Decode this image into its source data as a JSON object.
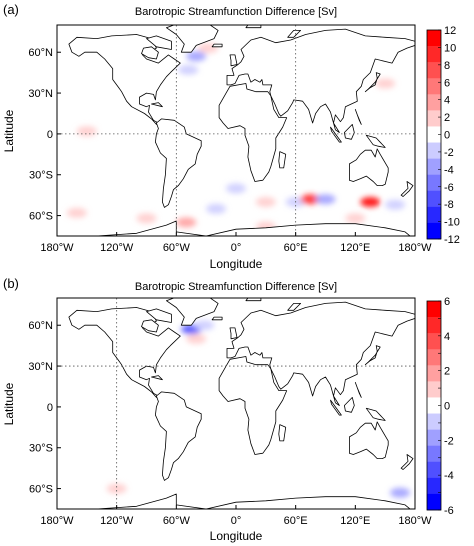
{
  "chart_data": [
    {
      "type": "heatmap",
      "panel_label": "(a)",
      "title": "Barotropic Streamfunction Difference [Sv]",
      "xlabel": "Longitude",
      "ylabel": "Latitude",
      "xlim": [
        -180,
        180
      ],
      "ylim": [
        -75,
        80
      ],
      "x_ticks": [
        {
          "value": -180,
          "label": "180°W"
        },
        {
          "value": -120,
          "label": "120°W"
        },
        {
          "value": -60,
          "label": "60°W"
        },
        {
          "value": 0,
          "label": "0°"
        },
        {
          "value": 60,
          "label": "60°E"
        },
        {
          "value": 120,
          "label": "120°E"
        },
        {
          "value": 180,
          "label": "180°W"
        }
      ],
      "y_ticks": [
        {
          "value": 60,
          "label": "60°N"
        },
        {
          "value": 30,
          "label": "30°N"
        },
        {
          "value": 0,
          "label": "0"
        },
        {
          "value": -30,
          "label": "30°S"
        },
        {
          "value": -60,
          "label": "60°S"
        }
      ],
      "colorbar": {
        "levels": [
          -12,
          -10,
          -8,
          -6,
          -4,
          -2,
          2,
          4,
          6,
          8,
          10,
          12
        ],
        "labels": [
          "12",
          "10",
          "8",
          "6",
          "4",
          "2",
          "0",
          "-2",
          "-4",
          "-6",
          "-8",
          "-10",
          "-12"
        ],
        "colors": [
          "#ff0000",
          "#ff2828",
          "#ff5050",
          "#ff7878",
          "#ffa0a0",
          "#ffcccc",
          "#ffffff",
          "#ccccff",
          "#a0a0ff",
          "#7878ff",
          "#5050ff",
          "#2828ff",
          "#0000ff"
        ]
      },
      "dotted_lines": {
        "lats": [
          0
        ],
        "lons": [
          -60,
          60
        ]
      },
      "anomalies": [
        {
          "lon": -40,
          "lat": 57,
          "value": -6
        },
        {
          "lon": -48,
          "lat": 47,
          "value": -3
        },
        {
          "lon": -28,
          "lat": 63,
          "value": 3
        },
        {
          "lon": -50,
          "lat": 38,
          "value": -2
        },
        {
          "lon": 150,
          "lat": 37,
          "value": 2
        },
        {
          "lon": -150,
          "lat": 2,
          "value": 2
        },
        {
          "lon": 150,
          "lat": 2,
          "value": -2
        },
        {
          "lon": 0,
          "lat": -40,
          "value": -3
        },
        {
          "lon": 30,
          "lat": -50,
          "value": 3
        },
        {
          "lon": -20,
          "lat": -55,
          "value": -3
        },
        {
          "lon": 60,
          "lat": -50,
          "value": -4
        },
        {
          "lon": 75,
          "lat": -48,
          "value": 10
        },
        {
          "lon": 90,
          "lat": -48,
          "value": -6
        },
        {
          "lon": 135,
          "lat": -50,
          "value": 12
        },
        {
          "lon": 160,
          "lat": -52,
          "value": -3
        },
        {
          "lon": -160,
          "lat": -58,
          "value": 3
        },
        {
          "lon": -90,
          "lat": -62,
          "value": 2
        },
        {
          "lon": -50,
          "lat": -65,
          "value": 4
        },
        {
          "lon": 30,
          "lat": -68,
          "value": 3
        },
        {
          "lon": 120,
          "lat": -62,
          "value": 2
        }
      ]
    },
    {
      "type": "heatmap",
      "panel_label": "(b)",
      "title": "Barotropic Streamfunction Difference [Sv]",
      "xlabel": "Longitude",
      "ylabel": "Latitude",
      "xlim": [
        -180,
        180
      ],
      "ylim": [
        -75,
        80
      ],
      "x_ticks": [
        {
          "value": -180,
          "label": "180°W"
        },
        {
          "value": -120,
          "label": "120°W"
        },
        {
          "value": -60,
          "label": "60°W"
        },
        {
          "value": 0,
          "label": "0°"
        },
        {
          "value": 60,
          "label": "60°E"
        },
        {
          "value": 120,
          "label": "120°E"
        },
        {
          "value": 180,
          "label": "180°W"
        }
      ],
      "y_ticks": [
        {
          "value": 60,
          "label": "60°N"
        },
        {
          "value": 30,
          "label": "30°N"
        },
        {
          "value": 0,
          "label": "0"
        },
        {
          "value": -30,
          "label": "30°S"
        },
        {
          "value": -60,
          "label": "60°S"
        }
      ],
      "colorbar": {
        "levels": [
          -6,
          -5,
          -4,
          -3,
          -2,
          -1,
          1,
          2,
          3,
          4,
          5,
          6
        ],
        "labels": [
          "6",
          "",
          "4",
          "",
          "2",
          "",
          "0",
          "",
          "-2",
          "",
          "-4",
          "",
          "-6"
        ],
        "colors": [
          "#ff0000",
          "#ff2828",
          "#ff5050",
          "#ff7878",
          "#ffa0a0",
          "#ffcccc",
          "#ffffff",
          "#ccccff",
          "#a0a0ff",
          "#7878ff",
          "#5050ff",
          "#2828ff",
          "#0000ff"
        ]
      },
      "dotted_lines": {
        "lats": [
          30
        ],
        "lons": [
          -120
        ]
      },
      "anomalies": [
        {
          "lon": -45,
          "lat": 57,
          "value": -5
        },
        {
          "lon": -32,
          "lat": 60,
          "value": -2
        },
        {
          "lon": -40,
          "lat": 50,
          "value": 1
        },
        {
          "lon": -55,
          "lat": 40,
          "value": -1
        },
        {
          "lon": 140,
          "lat": 35,
          "value": -1
        },
        {
          "lon": 165,
          "lat": -63,
          "value": -3
        },
        {
          "lon": -120,
          "lat": -60,
          "value": 1
        },
        {
          "lon": 20,
          "lat": -55,
          "value": -1
        }
      ]
    }
  ]
}
